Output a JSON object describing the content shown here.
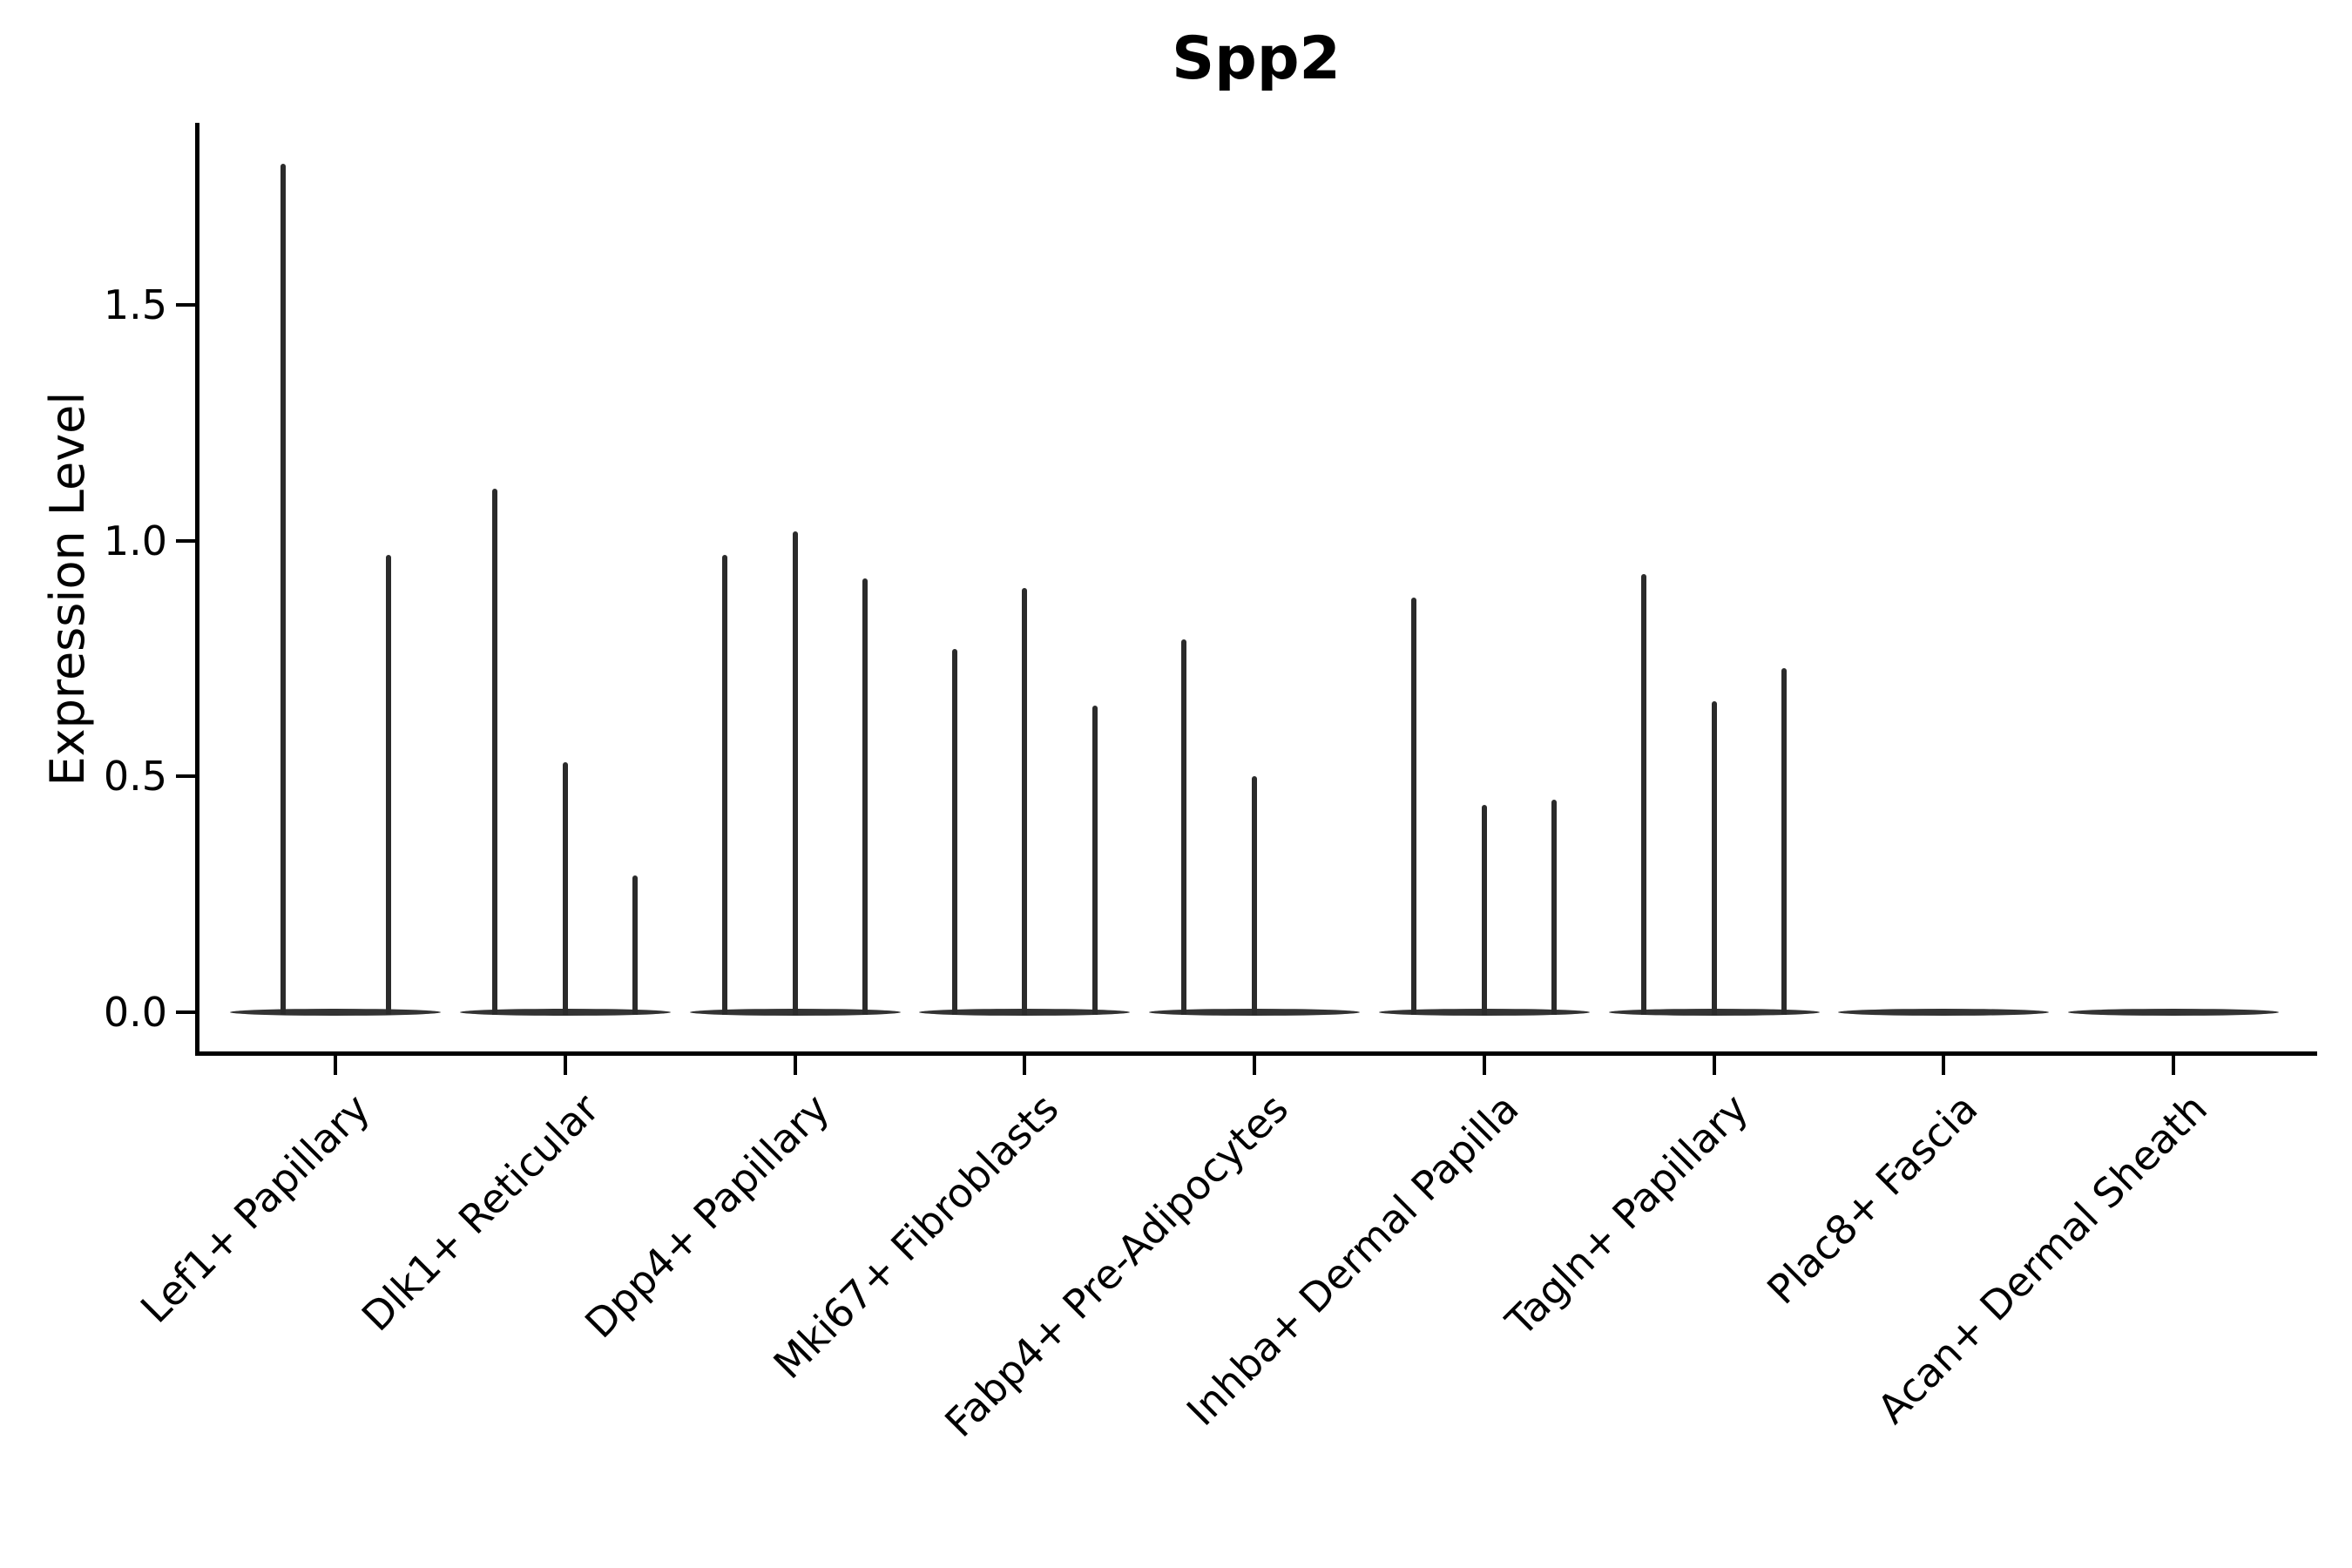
{
  "title": "Spp2",
  "chart_data": {
    "type": "violin",
    "title": "Spp2",
    "xlabel": "",
    "ylabel": "Expression Level",
    "grid": false,
    "legend_position": "none",
    "ylim": [
      -0.08,
      1.89
    ],
    "yticks": [
      0.0,
      0.5,
      1.0,
      1.5
    ],
    "ytick_labels": [
      "0.0",
      "0.5",
      "1.0",
      "1.5"
    ],
    "note": "Each category shows 2-3 needle-thin violins: a flat lens-shaped body at 0 plus a thin spike reaching the listed max expression value. Zero values are flat (no spike).",
    "categories": [
      {
        "label": "Lef1+ Papillary",
        "violin_max_expression": [
          1.8,
          0.97
        ]
      },
      {
        "label": "Dlk1+ Reticular",
        "violin_max_expression": [
          1.11,
          0.53,
          0.29
        ]
      },
      {
        "label": "Dpp4+ Papillary",
        "violin_max_expression": [
          0.97,
          1.02,
          0.92
        ]
      },
      {
        "label": "Mki67+ Fibroblasts",
        "violin_max_expression": [
          0.77,
          0.9,
          0.65
        ]
      },
      {
        "label": "Fabp4+ Pre-Adipocytes",
        "violin_max_expression": [
          0.79,
          0.5,
          0.0
        ]
      },
      {
        "label": "Inhba+ Dermal Papilla",
        "violin_max_expression": [
          0.88,
          0.44,
          0.45
        ]
      },
      {
        "label": "Tagln+ Papillary",
        "violin_max_expression": [
          0.93,
          0.66,
          0.73
        ]
      },
      {
        "label": "Plac8+ Fascia",
        "violin_max_expression": [
          0.0,
          0.0,
          0.0
        ]
      },
      {
        "label": "Acan+ Dermal Sheath",
        "violin_max_expression": [
          0.0,
          0.0,
          0.0
        ]
      }
    ]
  }
}
